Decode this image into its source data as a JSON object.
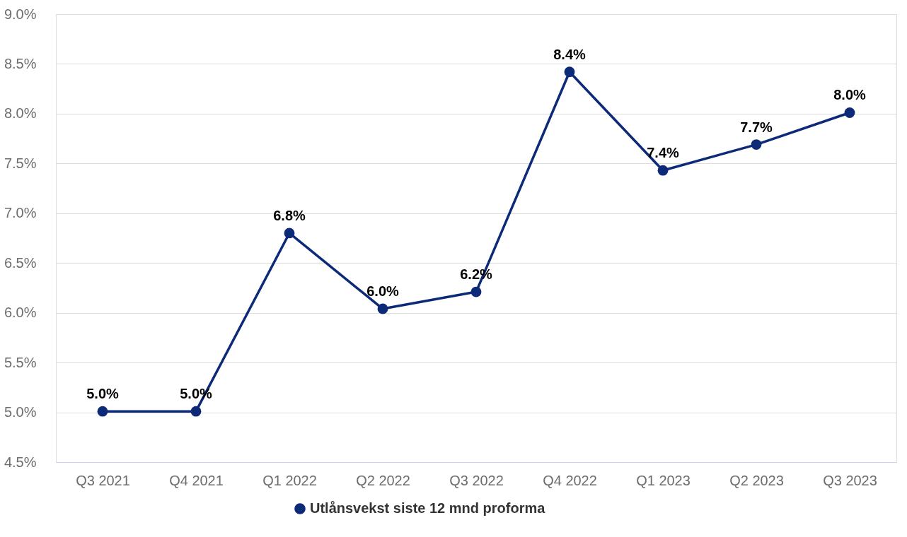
{
  "chart_data": {
    "type": "line",
    "categories": [
      "Q3 2021",
      "Q4 2021",
      "Q1 2022",
      "Q2 2022",
      "Q3 2022",
      "Q4 2022",
      "Q1 2023",
      "Q2 2023",
      "Q3 2023"
    ],
    "series": [
      {
        "name": "Utlånsvekst siste 12 mnd proforma",
        "color": "#0c2a78",
        "values": [
          5.01,
          5.01,
          6.8,
          6.04,
          6.21,
          8.42,
          7.43,
          7.69,
          8.01
        ],
        "value_labels": [
          "5.0%",
          "5.0%",
          "6.8%",
          "6.0%",
          "6.2%",
          "8.4%",
          "7.4%",
          "7.7%",
          "8.0%"
        ]
      }
    ],
    "ylim": [
      4.5,
      9.0
    ],
    "yticks": [
      {
        "value": 4.5,
        "label": "4.5%"
      },
      {
        "value": 5.0,
        "label": "5.0%"
      },
      {
        "value": 5.5,
        "label": "5.5%"
      },
      {
        "value": 6.0,
        "label": "6.0%"
      },
      {
        "value": 6.5,
        "label": "6.5%"
      },
      {
        "value": 7.0,
        "label": "7.0%"
      },
      {
        "value": 7.5,
        "label": "7.5%"
      },
      {
        "value": 8.0,
        "label": "8.0%"
      },
      {
        "value": 8.5,
        "label": "8.5%"
      },
      {
        "value": 9.0,
        "label": "9.0%"
      }
    ],
    "grid": "y",
    "legend": "bottom",
    "marker": "circle",
    "line_style": "solid"
  }
}
